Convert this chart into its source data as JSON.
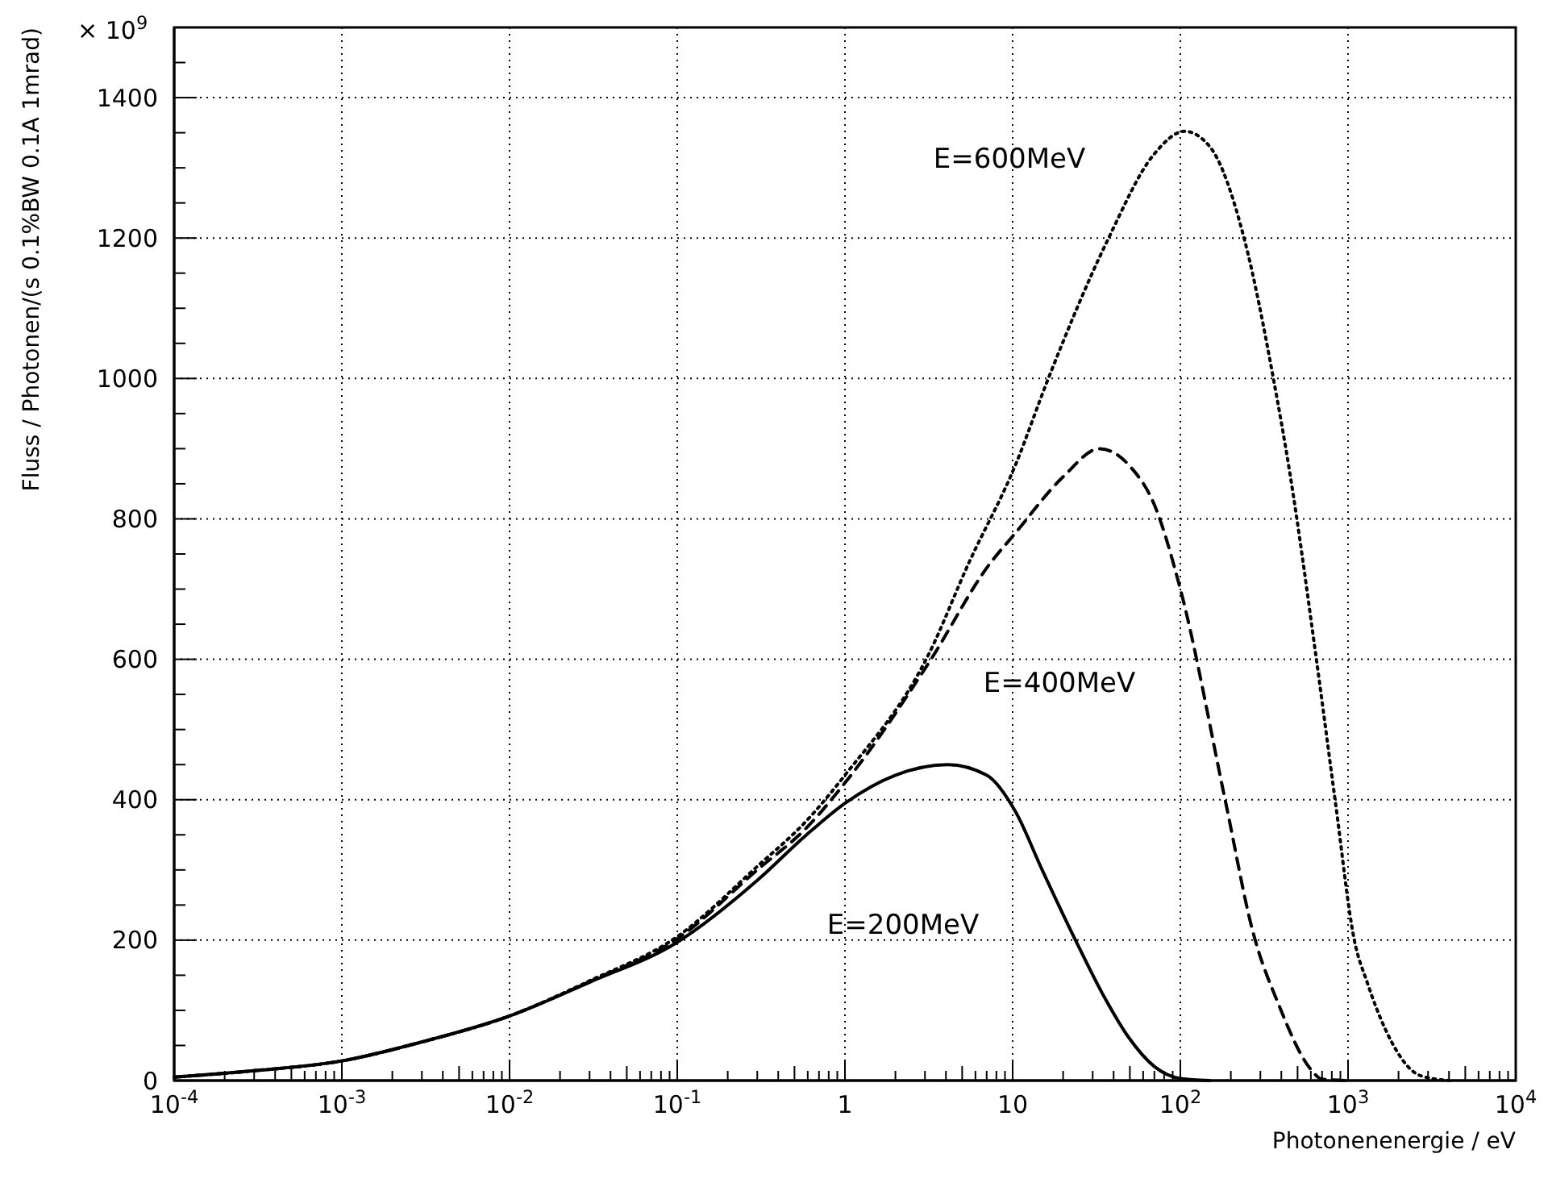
{
  "chart_data": {
    "type": "line",
    "xlabel": "Photonenenergie / eV",
    "ylabel": "Fluss / Photonen/(s 0.1%BW 0.1A 1mrad)",
    "log": "x",
    "grid": true,
    "marker": "none",
    "xlim": [
      0.0001,
      10000
    ],
    "ylim": [
      0,
      1500
    ],
    "xticks": [
      {
        "value": 0.0001,
        "label": "10$^{-4}$"
      },
      {
        "value": 0.001,
        "label": "10$^{-3}$"
      },
      {
        "value": 0.01,
        "label": "10$^{-2}$"
      },
      {
        "value": 0.1,
        "label": "10$^{-1}$"
      },
      1,
      10,
      {
        "value": 100,
        "label": "10$^{2}$"
      },
      {
        "value": 1000,
        "label": "10$^{3}$"
      },
      {
        "value": 10000,
        "label": "10$^{4}$"
      }
    ],
    "yticks": [
      0,
      200,
      400,
      600,
      800,
      1000,
      1200,
      1400
    ],
    "series": [
      {
        "color": "#000000",
        "line_style": "solid",
        "x": [
          0.0001,
          0.0003,
          0.001,
          0.003,
          0.01,
          0.03,
          0.1,
          0.3,
          0.59,
          1,
          2,
          4.1,
          7,
          10.4,
          15,
          23.7,
          35,
          49,
          70,
          100,
          150
        ],
        "values": [
          5,
          14,
          28,
          55,
          92,
          140,
          197,
          285,
          350,
          395,
          435,
          450,
          435,
          383,
          300,
          200,
          120,
          62,
          20,
          3,
          0
        ]
      },
      {
        "color": "#000000",
        "line_style": "dashed",
        "x": [
          0.0001,
          0.0003,
          0.001,
          0.003,
          0.01,
          0.03,
          0.1,
          0.3,
          0.59,
          1,
          3.2,
          7.2,
          10.4,
          20,
          33,
          50,
          70,
          100,
          186,
          270,
          386,
          600,
          700,
          1000
        ],
        "values": [
          5,
          14,
          28,
          55,
          92,
          141,
          202,
          300,
          360,
          424,
          597,
          734,
          780,
          860,
          900,
          875,
          820,
          700,
          397,
          213,
          108,
          16,
          2,
          0
        ]
      },
      {
        "color": "#000000",
        "line_style": "dotted",
        "x": [
          0.0001,
          0.0003,
          0.001,
          0.003,
          0.01,
          0.03,
          0.1,
          0.3,
          0.59,
          1,
          3.2,
          5.4,
          10.4,
          16.2,
          37,
          70,
          106,
          150,
          241,
          360,
          450,
          650,
          840,
          1090,
          1300,
          1700,
          2700,
          4000
        ],
        "values": [
          5,
          14,
          28,
          55,
          92,
          142,
          205,
          305,
          370,
          435,
          610,
          734,
          877,
          998,
          1198,
          1320,
          1352,
          1330,
          1198,
          998,
          865,
          597,
          397,
          200,
          140,
          69,
          7,
          0
        ]
      }
    ],
    "annotations": [
      "× 10$^{9}$",
      "E=600MeV",
      "E=400MeV",
      "E=200MeV"
    ]
  }
}
